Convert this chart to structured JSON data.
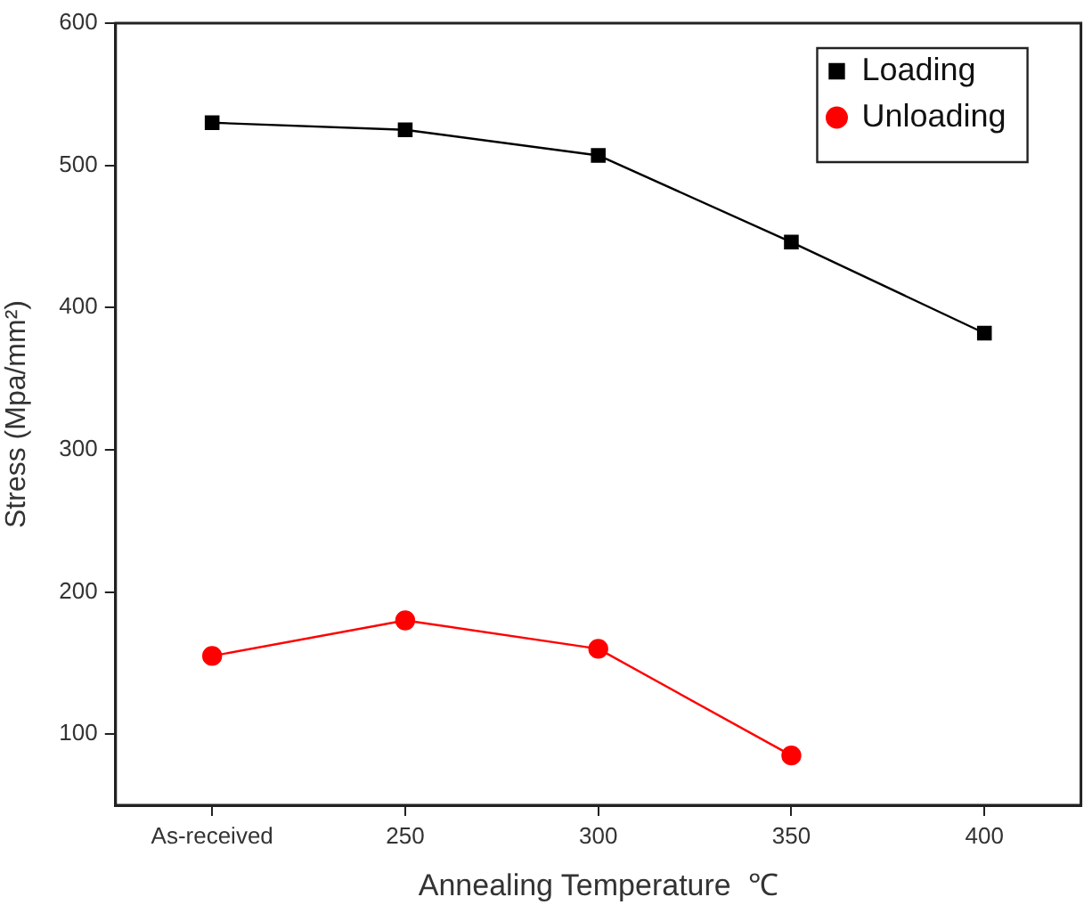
{
  "chart_data": {
    "type": "line",
    "xlabel": "Annealing Temperature  ℃",
    "ylabel": "Stress (Mpa/mm²)",
    "categories": [
      "As-received",
      "250",
      "300",
      "350",
      "400"
    ],
    "series": [
      {
        "name": "Loading",
        "color": "#000000",
        "marker": "square",
        "values": [
          530,
          525,
          507,
          446,
          382
        ]
      },
      {
        "name": "Unloading",
        "color": "#ff0000",
        "marker": "circle",
        "values": [
          155,
          180,
          160,
          85,
          null
        ]
      }
    ],
    "ylim": [
      50,
      600
    ],
    "yticks": [
      100,
      200,
      300,
      400,
      500,
      600
    ],
    "grid": false,
    "legend": "top right",
    "line_style": "solid"
  }
}
